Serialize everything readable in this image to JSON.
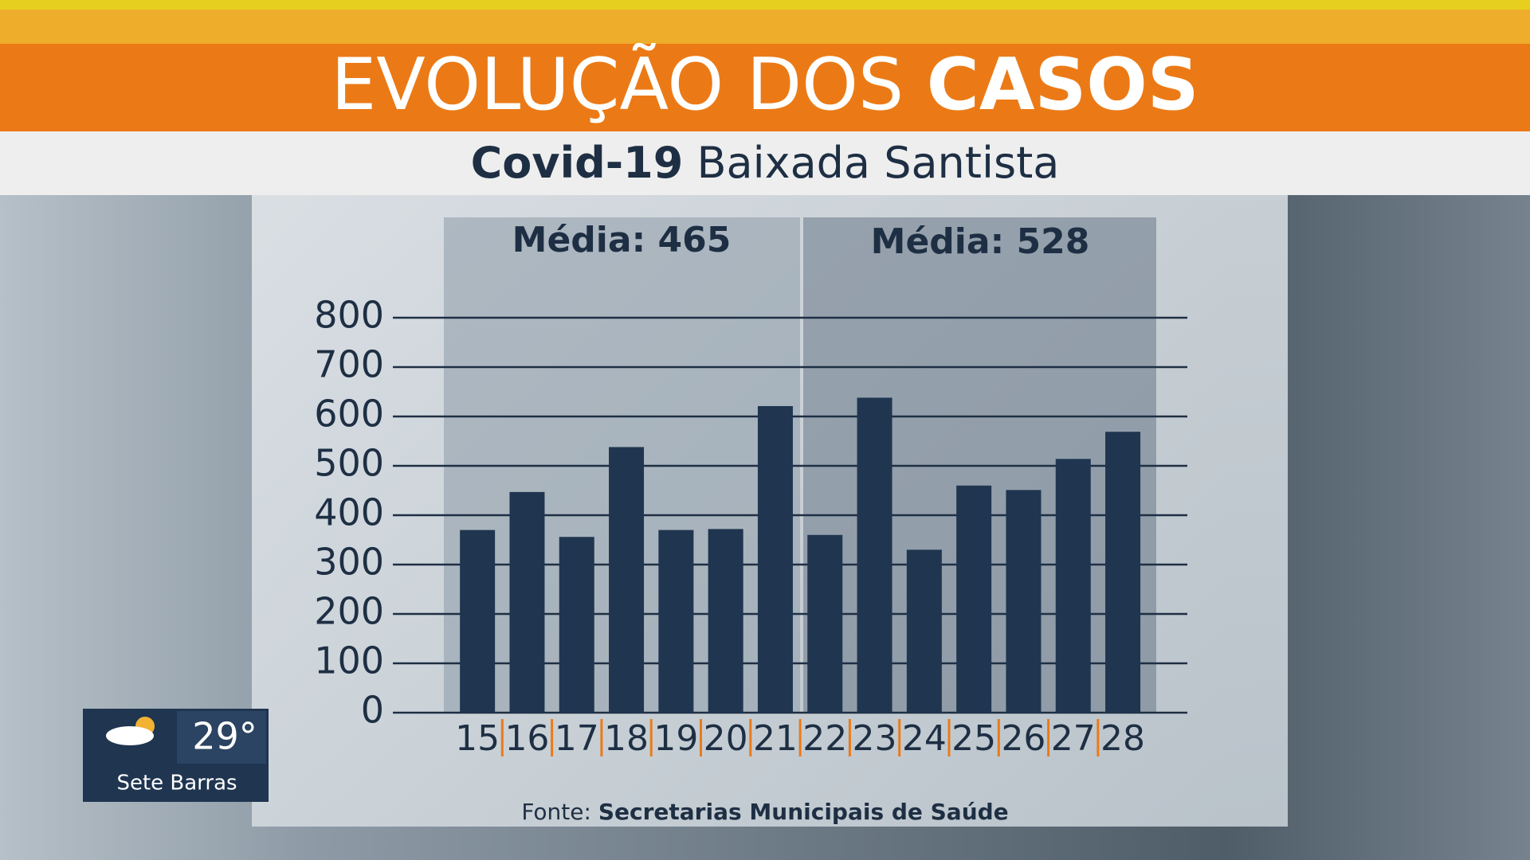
{
  "chart_data": {
    "type": "bar",
    "title_regular": "EVOLUÇÃO DOS",
    "title_bold": "CASOS",
    "subtitle_bold": "Covid-19",
    "subtitle_regular": "Baixada Santista",
    "annotations": [
      "Média: 465",
      "Média: 528"
    ],
    "categories": [
      "15",
      "16",
      "17",
      "18",
      "19",
      "20",
      "21",
      "22",
      "23",
      "24",
      "25",
      "26",
      "27",
      "28"
    ],
    "values": [
      370,
      447,
      356,
      538,
      370,
      372,
      621,
      360,
      638,
      330,
      460,
      451,
      514,
      569
    ],
    "color": "#1f3550",
    "ylim": [
      0,
      800
    ],
    "yticks": [
      0,
      100,
      200,
      300,
      400,
      500,
      600,
      700,
      800
    ],
    "grid": true,
    "source_label": "Fonte:",
    "source": "Secretarias Municipais de Saúde"
  },
  "weather": {
    "temperature": "29°",
    "location": "Sete Barras"
  }
}
